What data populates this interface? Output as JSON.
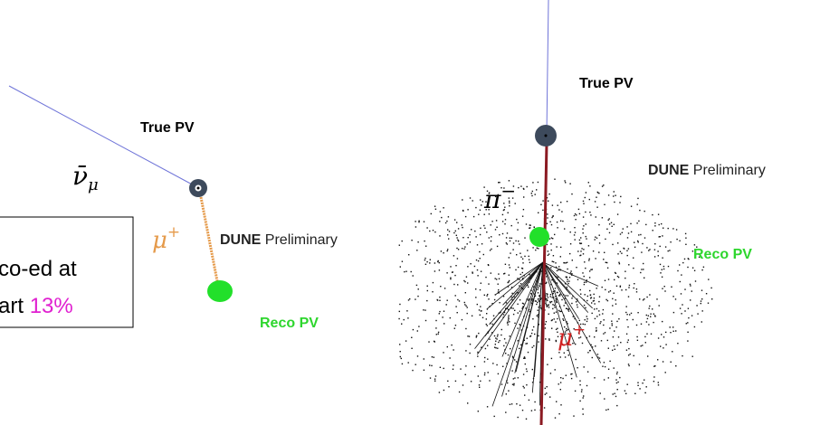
{
  "left_panel": {
    "true_pv_label": "True PV",
    "neutrino_symbol": "ν̄",
    "neutrino_subscript": "μ",
    "muon_symbol": "μ",
    "muon_charge": "+",
    "watermark_bold": "DUNE",
    "watermark_rest": "Preliminary",
    "reco_pv_label": "Reco PV"
  },
  "note_box": {
    "line1": "co-ed at",
    "line2_prefix": "art",
    "line2_highlight": "13%"
  },
  "right_panel": {
    "true_pv_label": "True PV",
    "watermark_bold": "DUNE",
    "watermark_rest": "Preliminary",
    "reco_pv_label": "Reco PV",
    "pion_symbol": "π",
    "pion_charge": "−",
    "muon_symbol": "μ",
    "muon_charge": "+"
  }
}
